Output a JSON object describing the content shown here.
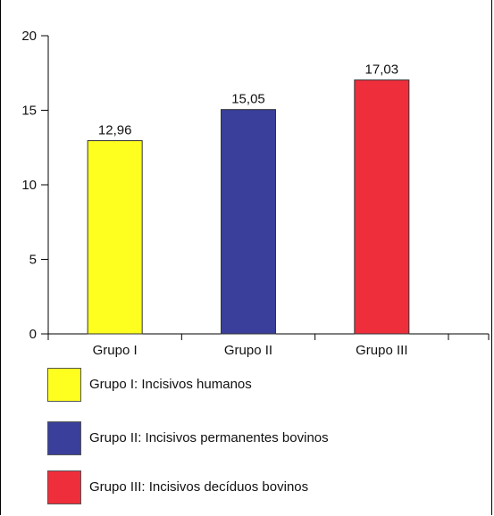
{
  "chart_data": {
    "type": "bar",
    "categories": [
      "Grupo I",
      "Grupo II",
      "Grupo III"
    ],
    "values": [
      12.96,
      15.05,
      17.03
    ],
    "value_labels": [
      "12,96",
      "15,05",
      "17,03"
    ],
    "colors": [
      "#ffff1f",
      "#3a3f9b",
      "#ef2e3c"
    ],
    "ylim": [
      0,
      20
    ],
    "yticks": [
      0,
      5,
      10,
      15,
      20
    ],
    "grid": false,
    "title": "",
    "xlabel": "",
    "ylabel": "",
    "legend_position": "bottom",
    "legend": [
      "Grupo I: Incisivos humanos",
      "Grupo II: Incisivos permanentes bovinos",
      "Grupo III: Incisivos decíduos bovinos"
    ]
  }
}
